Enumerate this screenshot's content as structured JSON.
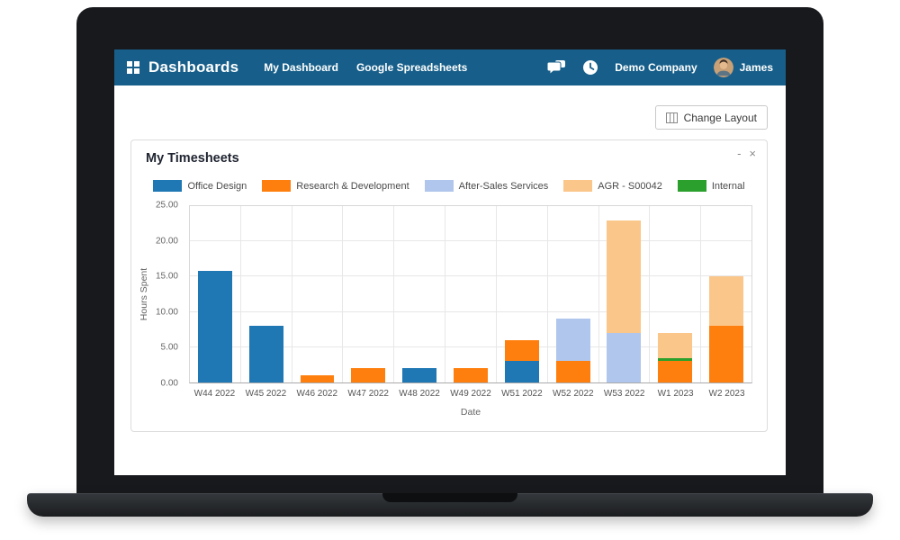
{
  "colors": {
    "navbar_bg": "#175f8a",
    "content_bg": "#ffffff"
  },
  "navbar": {
    "app_title": "Dashboards",
    "links": [
      {
        "label": "My Dashboard"
      },
      {
        "label": "Google Spreadsheets"
      }
    ],
    "company": "Demo Company",
    "user": "James"
  },
  "toolbar": {
    "change_layout_label": "Change Layout"
  },
  "card": {
    "title": "My Timesheets",
    "minimize_label": "-",
    "close_label": "×"
  },
  "chart_data": {
    "type": "bar",
    "stacked": true,
    "title": "My Timesheets",
    "xlabel": "Date",
    "ylabel": "Hours Spent",
    "ylim": [
      0,
      25
    ],
    "yticks": [
      0,
      5,
      10,
      15,
      20,
      25
    ],
    "ytick_labels": [
      "0.00",
      "5.00",
      "10.00",
      "15.00",
      "20.00",
      "25.00"
    ],
    "grid": true,
    "legend_position": "top",
    "categories": [
      "W44 2022",
      "W45 2022",
      "W46 2022",
      "W47 2022",
      "W48 2022",
      "W49 2022",
      "W51 2022",
      "W52 2022",
      "W53 2022",
      "W1 2023",
      "W2 2023"
    ],
    "series": [
      {
        "name": "Office Design",
        "color": "#1f77b4",
        "values": [
          15.8,
          8,
          0,
          0,
          2,
          0,
          3,
          0,
          0,
          0,
          0
        ]
      },
      {
        "name": "Research & Development",
        "color": "#ff7f0e",
        "values": [
          0,
          0,
          1,
          2,
          0,
          2,
          3,
          3,
          0,
          3,
          8
        ]
      },
      {
        "name": "After-Sales Services",
        "color": "#b0c6ec",
        "values": [
          0,
          0,
          0,
          0,
          0,
          0,
          0,
          6,
          7,
          0,
          0
        ]
      },
      {
        "name": "AGR - S00042",
        "color": "#fbc689",
        "values": [
          0,
          0,
          0,
          0,
          0,
          0,
          0,
          0,
          16,
          3.5,
          7
        ]
      },
      {
        "name": "Internal",
        "color": "#2ca02c",
        "values": [
          0,
          0,
          0,
          0,
          0,
          0,
          0,
          0,
          0,
          0.5,
          0
        ]
      }
    ],
    "stack_order": [
      "Office Design",
      "Research & Development",
      "After-Sales Services",
      "Internal",
      "AGR - S00042"
    ]
  }
}
